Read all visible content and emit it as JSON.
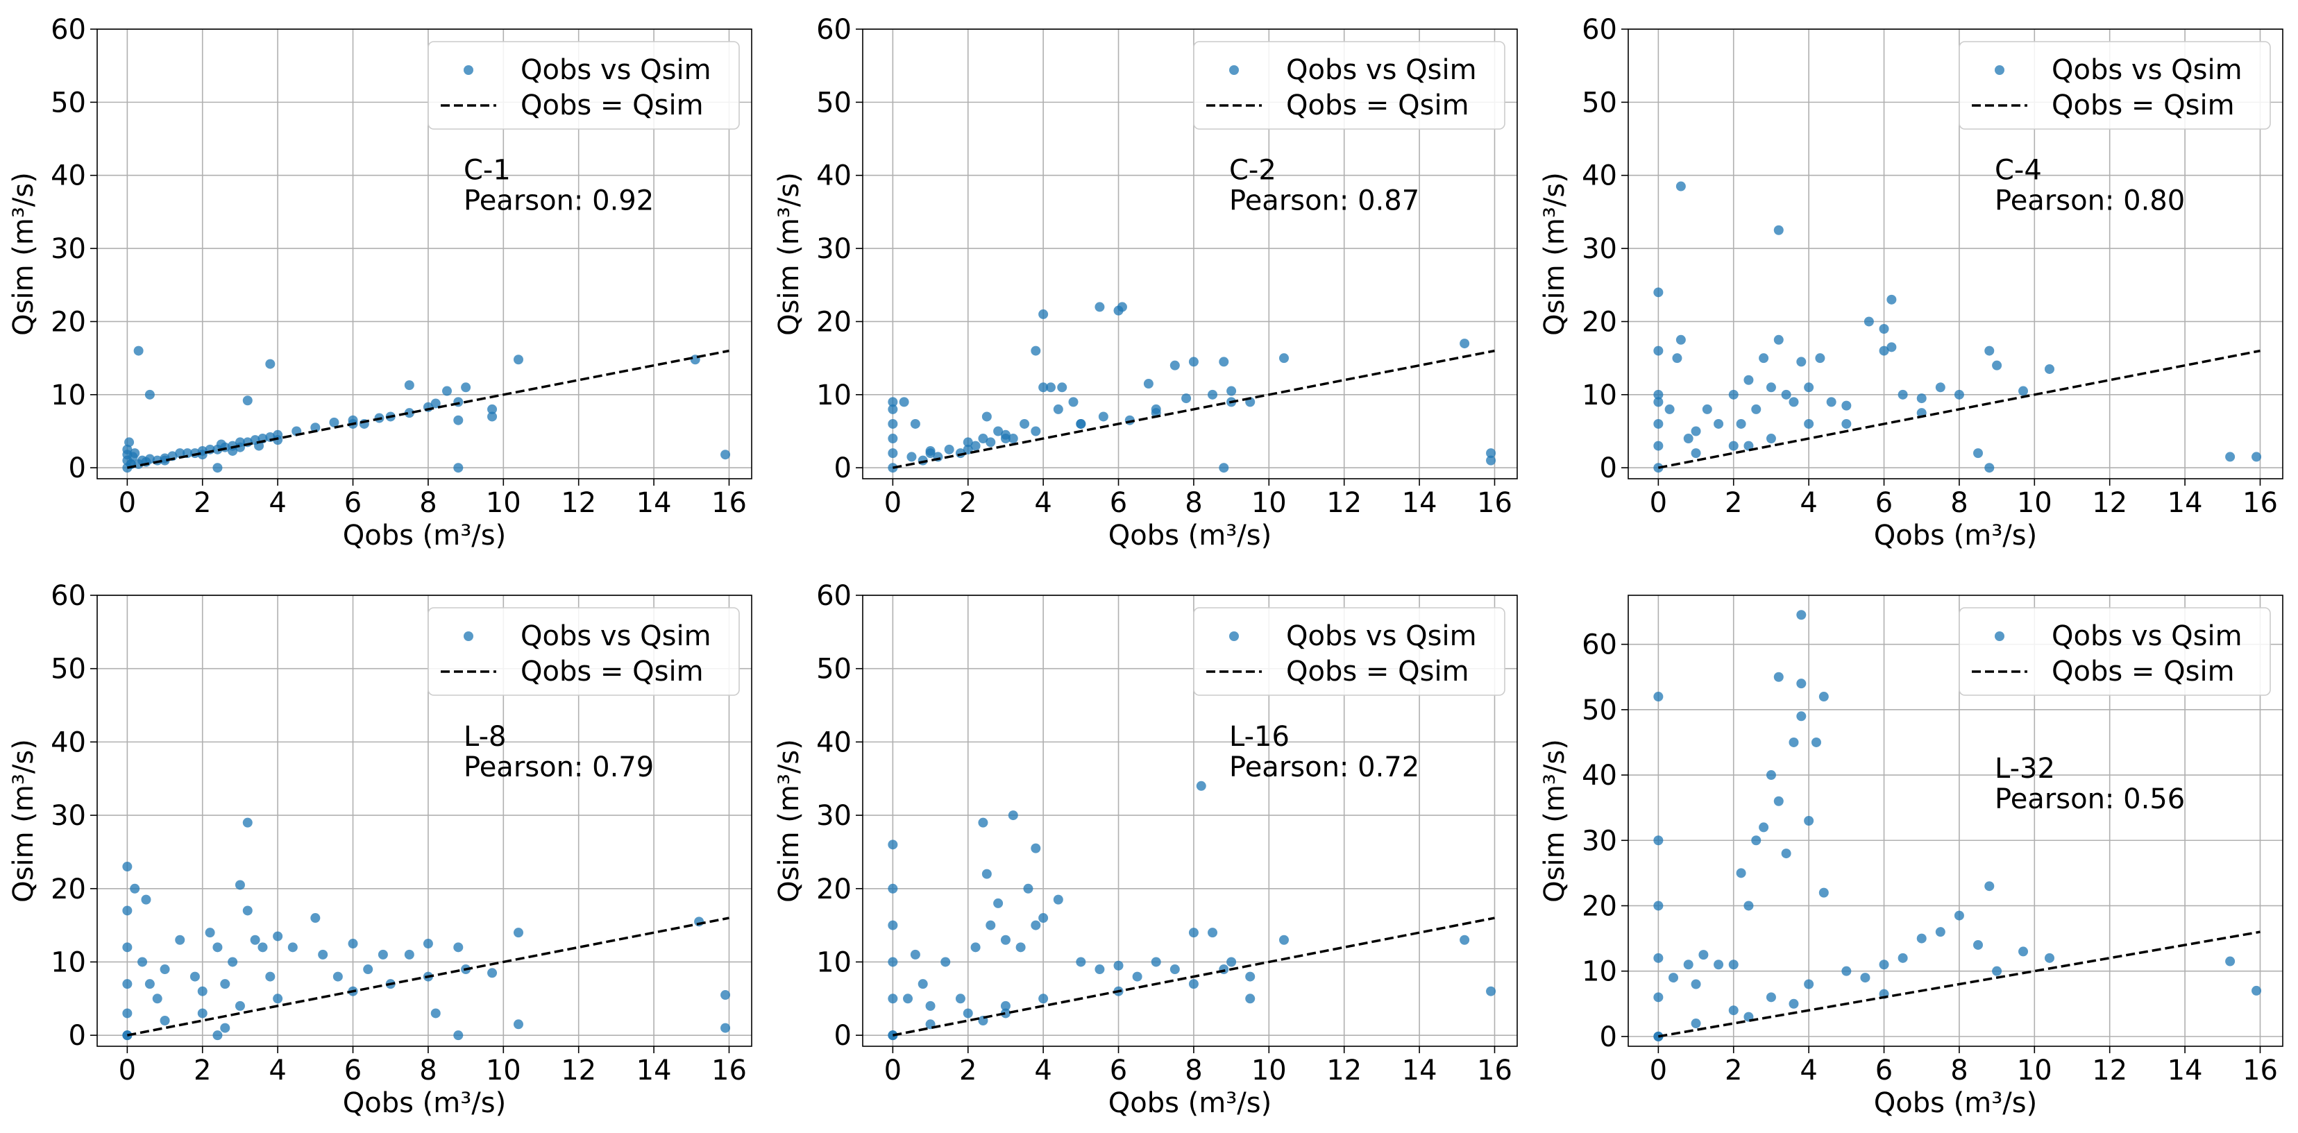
{
  "chart_data": [
    {
      "type": "scatter",
      "annotation": [
        "C-1",
        "Pearson: 0.92"
      ],
      "xlabel": "Qobs (m³/s)",
      "ylabel": "Qsim (m³/s)",
      "xlim": [
        -0.8,
        16.6
      ],
      "ylim": [
        -1.5,
        60
      ],
      "xticks": [
        0,
        2,
        4,
        6,
        8,
        10,
        12,
        14,
        16
      ],
      "yticks": [
        0,
        10,
        20,
        30,
        40,
        50,
        60
      ],
      "grid": true,
      "legend_position": "top-right",
      "series": [
        {
          "name": "Qobs vs Qsim",
          "kind": "points",
          "x": [
            0,
            0,
            0,
            0.05,
            0.1,
            0.15,
            0.2,
            0.3,
            0.4,
            0.5,
            0.6,
            0.8,
            1.0,
            1.2,
            1.4,
            1.6,
            1.8,
            2.0,
            2.2,
            2.4,
            2.5,
            2.6,
            2.8,
            3.0,
            3.2,
            3.4,
            3.6,
            3.8,
            4.0,
            4.5,
            5.0,
            5.5,
            6.0,
            6.3,
            6.7,
            7.0,
            7.5,
            8.0,
            8.2,
            8.8,
            8.8,
            9.0,
            9.7,
            10.4,
            15.1,
            15.9,
            0.3,
            0.6,
            3.2,
            3.8,
            2.4,
            8.8,
            0,
            0.1,
            1.0,
            2.0,
            3.0,
            4.0,
            6.0,
            7.5,
            8.5,
            9.7,
            2.8,
            3.5
          ],
          "y": [
            0,
            1.0,
            2.5,
            3.5,
            0.5,
            1.5,
            2.0,
            0.5,
            1.0,
            0.8,
            1.2,
            1.0,
            1.3,
            1.6,
            2.0,
            2.0,
            2.0,
            2.3,
            2.5,
            2.5,
            3.2,
            2.8,
            3.0,
            3.5,
            3.5,
            3.8,
            4.0,
            4.2,
            4.5,
            5.0,
            5.5,
            6.2,
            6.5,
            6.0,
            6.8,
            7.0,
            7.5,
            8.3,
            8.8,
            9.0,
            6.5,
            11.0,
            8.0,
            14.8,
            14.8,
            1.8,
            16.0,
            10.0,
            9.2,
            14.2,
            0,
            0,
            1.8,
            0.5,
            1.0,
            1.8,
            2.8,
            3.8,
            6.0,
            11.3,
            10.5,
            7.0,
            2.3,
            3.0
          ]
        },
        {
          "name": "Qobs = Qsim",
          "kind": "line",
          "x": [
            0,
            16
          ],
          "y": [
            0,
            16
          ]
        }
      ]
    },
    {
      "type": "scatter",
      "annotation": [
        "C-2",
        "Pearson: 0.87"
      ],
      "xlabel": "Qobs (m³/s)",
      "ylabel": "Qsim (m³/s)",
      "xlim": [
        -0.8,
        16.6
      ],
      "ylim": [
        -1.5,
        60
      ],
      "xticks": [
        0,
        2,
        4,
        6,
        8,
        10,
        12,
        14,
        16
      ],
      "yticks": [
        0,
        10,
        20,
        30,
        40,
        50,
        60
      ],
      "grid": true,
      "legend_position": "top-right",
      "series": [
        {
          "name": "Qobs vs Qsim",
          "kind": "points",
          "x": [
            0,
            0,
            0,
            0,
            0,
            0,
            0.3,
            0.5,
            0.8,
            1.0,
            1.2,
            1.5,
            1.8,
            2.0,
            2.2,
            2.4,
            2.6,
            2.8,
            3.0,
            3.2,
            3.5,
            3.8,
            4.0,
            4.2,
            4.4,
            4.8,
            5.0,
            5.5,
            5.6,
            6.0,
            6.1,
            6.3,
            6.8,
            7.0,
            7.5,
            7.8,
            8.0,
            8.5,
            8.8,
            8.8,
            9.0,
            9.5,
            10.4,
            15.2,
            15.9,
            15.9,
            0.6,
            3.8,
            4.0,
            2.5,
            4.5,
            1.0,
            2.0,
            3.0,
            5.0,
            7.0,
            9.0
          ],
          "y": [
            0,
            2,
            4,
            6,
            8,
            9,
            9.0,
            1.5,
            1.0,
            2.0,
            1.5,
            2.5,
            2.0,
            2.5,
            3.0,
            4.0,
            3.5,
            5.0,
            4.5,
            4.0,
            6.0,
            5.0,
            21.0,
            11.0,
            8.0,
            9.0,
            6.0,
            22.0,
            7.0,
            21.5,
            22.0,
            6.5,
            11.5,
            8.0,
            14.0,
            9.5,
            14.5,
            10.0,
            0,
            14.5,
            10.5,
            9.0,
            15.0,
            17.0,
            2.0,
            1.0,
            6.0,
            16.0,
            11.0,
            7.0,
            11.0,
            2.3,
            3.5,
            4.0,
            6.0,
            7.5,
            9.0
          ]
        },
        {
          "name": "Qobs = Qsim",
          "kind": "line",
          "x": [
            0,
            16
          ],
          "y": [
            0,
            16
          ]
        }
      ]
    },
    {
      "type": "scatter",
      "annotation": [
        "C-4",
        "Pearson: 0.80"
      ],
      "xlabel": "Qobs (m³/s)",
      "ylabel": "Qsim (m³/s)",
      "xlim": [
        -0.8,
        16.6
      ],
      "ylim": [
        -1.5,
        60
      ],
      "xticks": [
        0,
        2,
        4,
        6,
        8,
        10,
        12,
        14,
        16
      ],
      "yticks": [
        0,
        10,
        20,
        30,
        40,
        50,
        60
      ],
      "grid": true,
      "legend_position": "top-right",
      "series": [
        {
          "name": "Qobs vs Qsim",
          "kind": "points",
          "x": [
            0,
            0,
            0,
            0,
            0,
            0,
            0.3,
            0.5,
            0.6,
            0.8,
            1.0,
            1.3,
            1.6,
            2.0,
            2.2,
            2.4,
            2.6,
            2.8,
            3.0,
            3.2,
            3.4,
            3.6,
            3.8,
            4.0,
            4.3,
            4.6,
            5.0,
            5.6,
            6.0,
            6.2,
            6.5,
            7.0,
            7.5,
            8.0,
            8.5,
            8.8,
            8.8,
            9.0,
            9.7,
            10.4,
            15.2,
            15.9,
            0.6,
            3.2,
            0,
            6.0,
            6.2,
            2.4,
            3.0,
            4.0,
            1.0,
            2.0,
            5.0,
            7.0
          ],
          "y": [
            0,
            3,
            6,
            10,
            16,
            24,
            8.0,
            15.0,
            38.5,
            4.0,
            5.0,
            8.0,
            6.0,
            10.0,
            6.0,
            12.0,
            8.0,
            15.0,
            11.0,
            32.5,
            10.0,
            9.0,
            14.5,
            11.0,
            15.0,
            9.0,
            8.5,
            20.0,
            19.0,
            23.0,
            10.0,
            9.5,
            11.0,
            10.0,
            2.0,
            16.0,
            0,
            14.0,
            10.5,
            13.5,
            1.5,
            1.5,
            17.5,
            17.5,
            9.0,
            16.0,
            16.5,
            3.0,
            4.0,
            6.0,
            2.0,
            3.0,
            6.0,
            7.5
          ]
        },
        {
          "name": "Qobs = Qsim",
          "kind": "line",
          "x": [
            0,
            16
          ],
          "y": [
            0,
            16
          ]
        }
      ]
    },
    {
      "type": "scatter",
      "annotation": [
        "L-8",
        "Pearson: 0.79"
      ],
      "xlabel": "Qobs (m³/s)",
      "ylabel": "Qsim (m³/s)",
      "xlim": [
        -0.8,
        16.6
      ],
      "ylim": [
        -1.5,
        60
      ],
      "xticks": [
        0,
        2,
        4,
        6,
        8,
        10,
        12,
        14,
        16
      ],
      "yticks": [
        0,
        10,
        20,
        30,
        40,
        50,
        60
      ],
      "grid": true,
      "legend_position": "top-right",
      "series": [
        {
          "name": "Qobs vs Qsim",
          "kind": "points",
          "x": [
            0,
            0,
            0,
            0,
            0,
            0,
            0.2,
            0.4,
            0.5,
            0.6,
            0.8,
            1.0,
            1.4,
            1.8,
            2.0,
            2.2,
            2.4,
            2.6,
            2.8,
            3.0,
            3.2,
            3.2,
            3.4,
            3.6,
            3.8,
            4.0,
            4.4,
            5.0,
            5.2,
            5.6,
            6.0,
            6.4,
            6.8,
            7.0,
            7.5,
            8.0,
            8.2,
            8.8,
            8.8,
            9.0,
            9.7,
            10.4,
            10.4,
            15.2,
            15.9,
            15.9,
            0,
            1.0,
            2.0,
            3.0,
            4.0,
            6.0,
            8.0,
            2.4,
            2.6
          ],
          "y": [
            0,
            3,
            7,
            12,
            17,
            23,
            20.0,
            10.0,
            18.5,
            7.0,
            5.0,
            9.0,
            13.0,
            8.0,
            6.0,
            14.0,
            12.0,
            7.0,
            10.0,
            20.5,
            29.0,
            17.0,
            13.0,
            12.0,
            8.0,
            13.5,
            12.0,
            16.0,
            11.0,
            8.0,
            12.5,
            9.0,
            11.0,
            7.0,
            11.0,
            12.5,
            3.0,
            12.0,
            0,
            9.0,
            8.5,
            14.0,
            1.5,
            15.5,
            5.5,
            1.0,
            0,
            2.0,
            3.0,
            4.0,
            5.0,
            6.0,
            8.0,
            0,
            1.0
          ]
        },
        {
          "name": "Qobs = Qsim",
          "kind": "line",
          "x": [
            0,
            16
          ],
          "y": [
            0,
            16
          ]
        }
      ]
    },
    {
      "type": "scatter",
      "annotation": [
        "L-16",
        "Pearson: 0.72"
      ],
      "xlabel": "Qobs (m³/s)",
      "ylabel": "Qsim (m³/s)",
      "xlim": [
        -0.8,
        16.6
      ],
      "ylim": [
        -1.5,
        60
      ],
      "xticks": [
        0,
        2,
        4,
        6,
        8,
        10,
        12,
        14,
        16
      ],
      "yticks": [
        0,
        10,
        20,
        30,
        40,
        50,
        60
      ],
      "grid": true,
      "legend_position": "top-right",
      "series": [
        {
          "name": "Qobs vs Qsim",
          "kind": "points",
          "x": [
            0,
            0,
            0,
            0,
            0,
            0,
            0.4,
            0.6,
            0.8,
            1.0,
            1.4,
            1.8,
            2.2,
            2.4,
            2.5,
            2.6,
            2.8,
            3.0,
            3.2,
            3.4,
            3.6,
            3.8,
            3.8,
            4.0,
            4.4,
            5.0,
            5.5,
            6.0,
            6.5,
            7.0,
            7.5,
            8.0,
            8.2,
            8.5,
            8.8,
            9.0,
            9.5,
            10.4,
            15.2,
            15.9,
            0,
            1.0,
            2.0,
            3.0,
            4.0,
            6.0,
            8.0,
            9.5,
            2.4,
            3.0
          ],
          "y": [
            0,
            5,
            10,
            15,
            20,
            26,
            5.0,
            11.0,
            7.0,
            4.0,
            10.0,
            5.0,
            12.0,
            29.0,
            22.0,
            15.0,
            18.0,
            13.0,
            30.0,
            12.0,
            20.0,
            25.5,
            15.0,
            16.0,
            18.5,
            10.0,
            9.0,
            9.5,
            8.0,
            10.0,
            9.0,
            14.0,
            34.0,
            14.0,
            9.0,
            10.0,
            8.0,
            13.0,
            13.0,
            6.0,
            0,
            1.5,
            3.0,
            4.0,
            5.0,
            6.0,
            7.0,
            5.0,
            2.0,
            3.0
          ]
        },
        {
          "name": "Qobs = Qsim",
          "kind": "line",
          "x": [
            0,
            16
          ],
          "y": [
            0,
            16
          ]
        }
      ]
    },
    {
      "type": "scatter",
      "annotation": [
        "L-32",
        "Pearson: 0.56"
      ],
      "xlabel": "Qobs (m³/s)",
      "ylabel": "Qsim (m³/s)",
      "xlim": [
        -0.8,
        16.6
      ],
      "ylim": [
        -1.5,
        67.5
      ],
      "xticks": [
        0,
        2,
        4,
        6,
        8,
        10,
        12,
        14,
        16
      ],
      "yticks": [
        0,
        10,
        20,
        30,
        40,
        50,
        60
      ],
      "grid": true,
      "legend_position": "top-right",
      "series": [
        {
          "name": "Qobs vs Qsim",
          "kind": "points",
          "x": [
            0,
            0,
            0,
            0,
            0,
            0,
            0.4,
            0.8,
            1.0,
            1.2,
            1.6,
            2.0,
            2.2,
            2.4,
            2.6,
            2.8,
            3.0,
            3.2,
            3.2,
            3.4,
            3.6,
            3.8,
            3.8,
            3.8,
            4.0,
            4.2,
            4.4,
            4.4,
            5.0,
            5.5,
            6.0,
            6.5,
            7.0,
            7.5,
            8.0,
            8.5,
            8.8,
            9.0,
            9.7,
            10.4,
            15.2,
            15.9,
            0,
            1.0,
            2.0,
            3.0,
            4.0,
            6.0,
            2.4,
            3.6
          ],
          "y": [
            0,
            6,
            12,
            20,
            30,
            52,
            9.0,
            11.0,
            8.0,
            12.5,
            11.0,
            11.0,
            25.0,
            20.0,
            30.0,
            32.0,
            40.0,
            55.0,
            36.0,
            28.0,
            45.0,
            64.5,
            54.0,
            49.0,
            33.0,
            45.0,
            52.0,
            22.0,
            10.0,
            9.0,
            11.0,
            12.0,
            15.0,
            16.0,
            18.5,
            14.0,
            23.0,
            10.0,
            13.0,
            12.0,
            11.5,
            7.0,
            0,
            2.0,
            4.0,
            6.0,
            8.0,
            6.5,
            3.0,
            5.0
          ]
        },
        {
          "name": "Qobs = Qsim",
          "kind": "line",
          "x": [
            0,
            16
          ],
          "y": [
            0,
            16
          ]
        }
      ]
    }
  ]
}
